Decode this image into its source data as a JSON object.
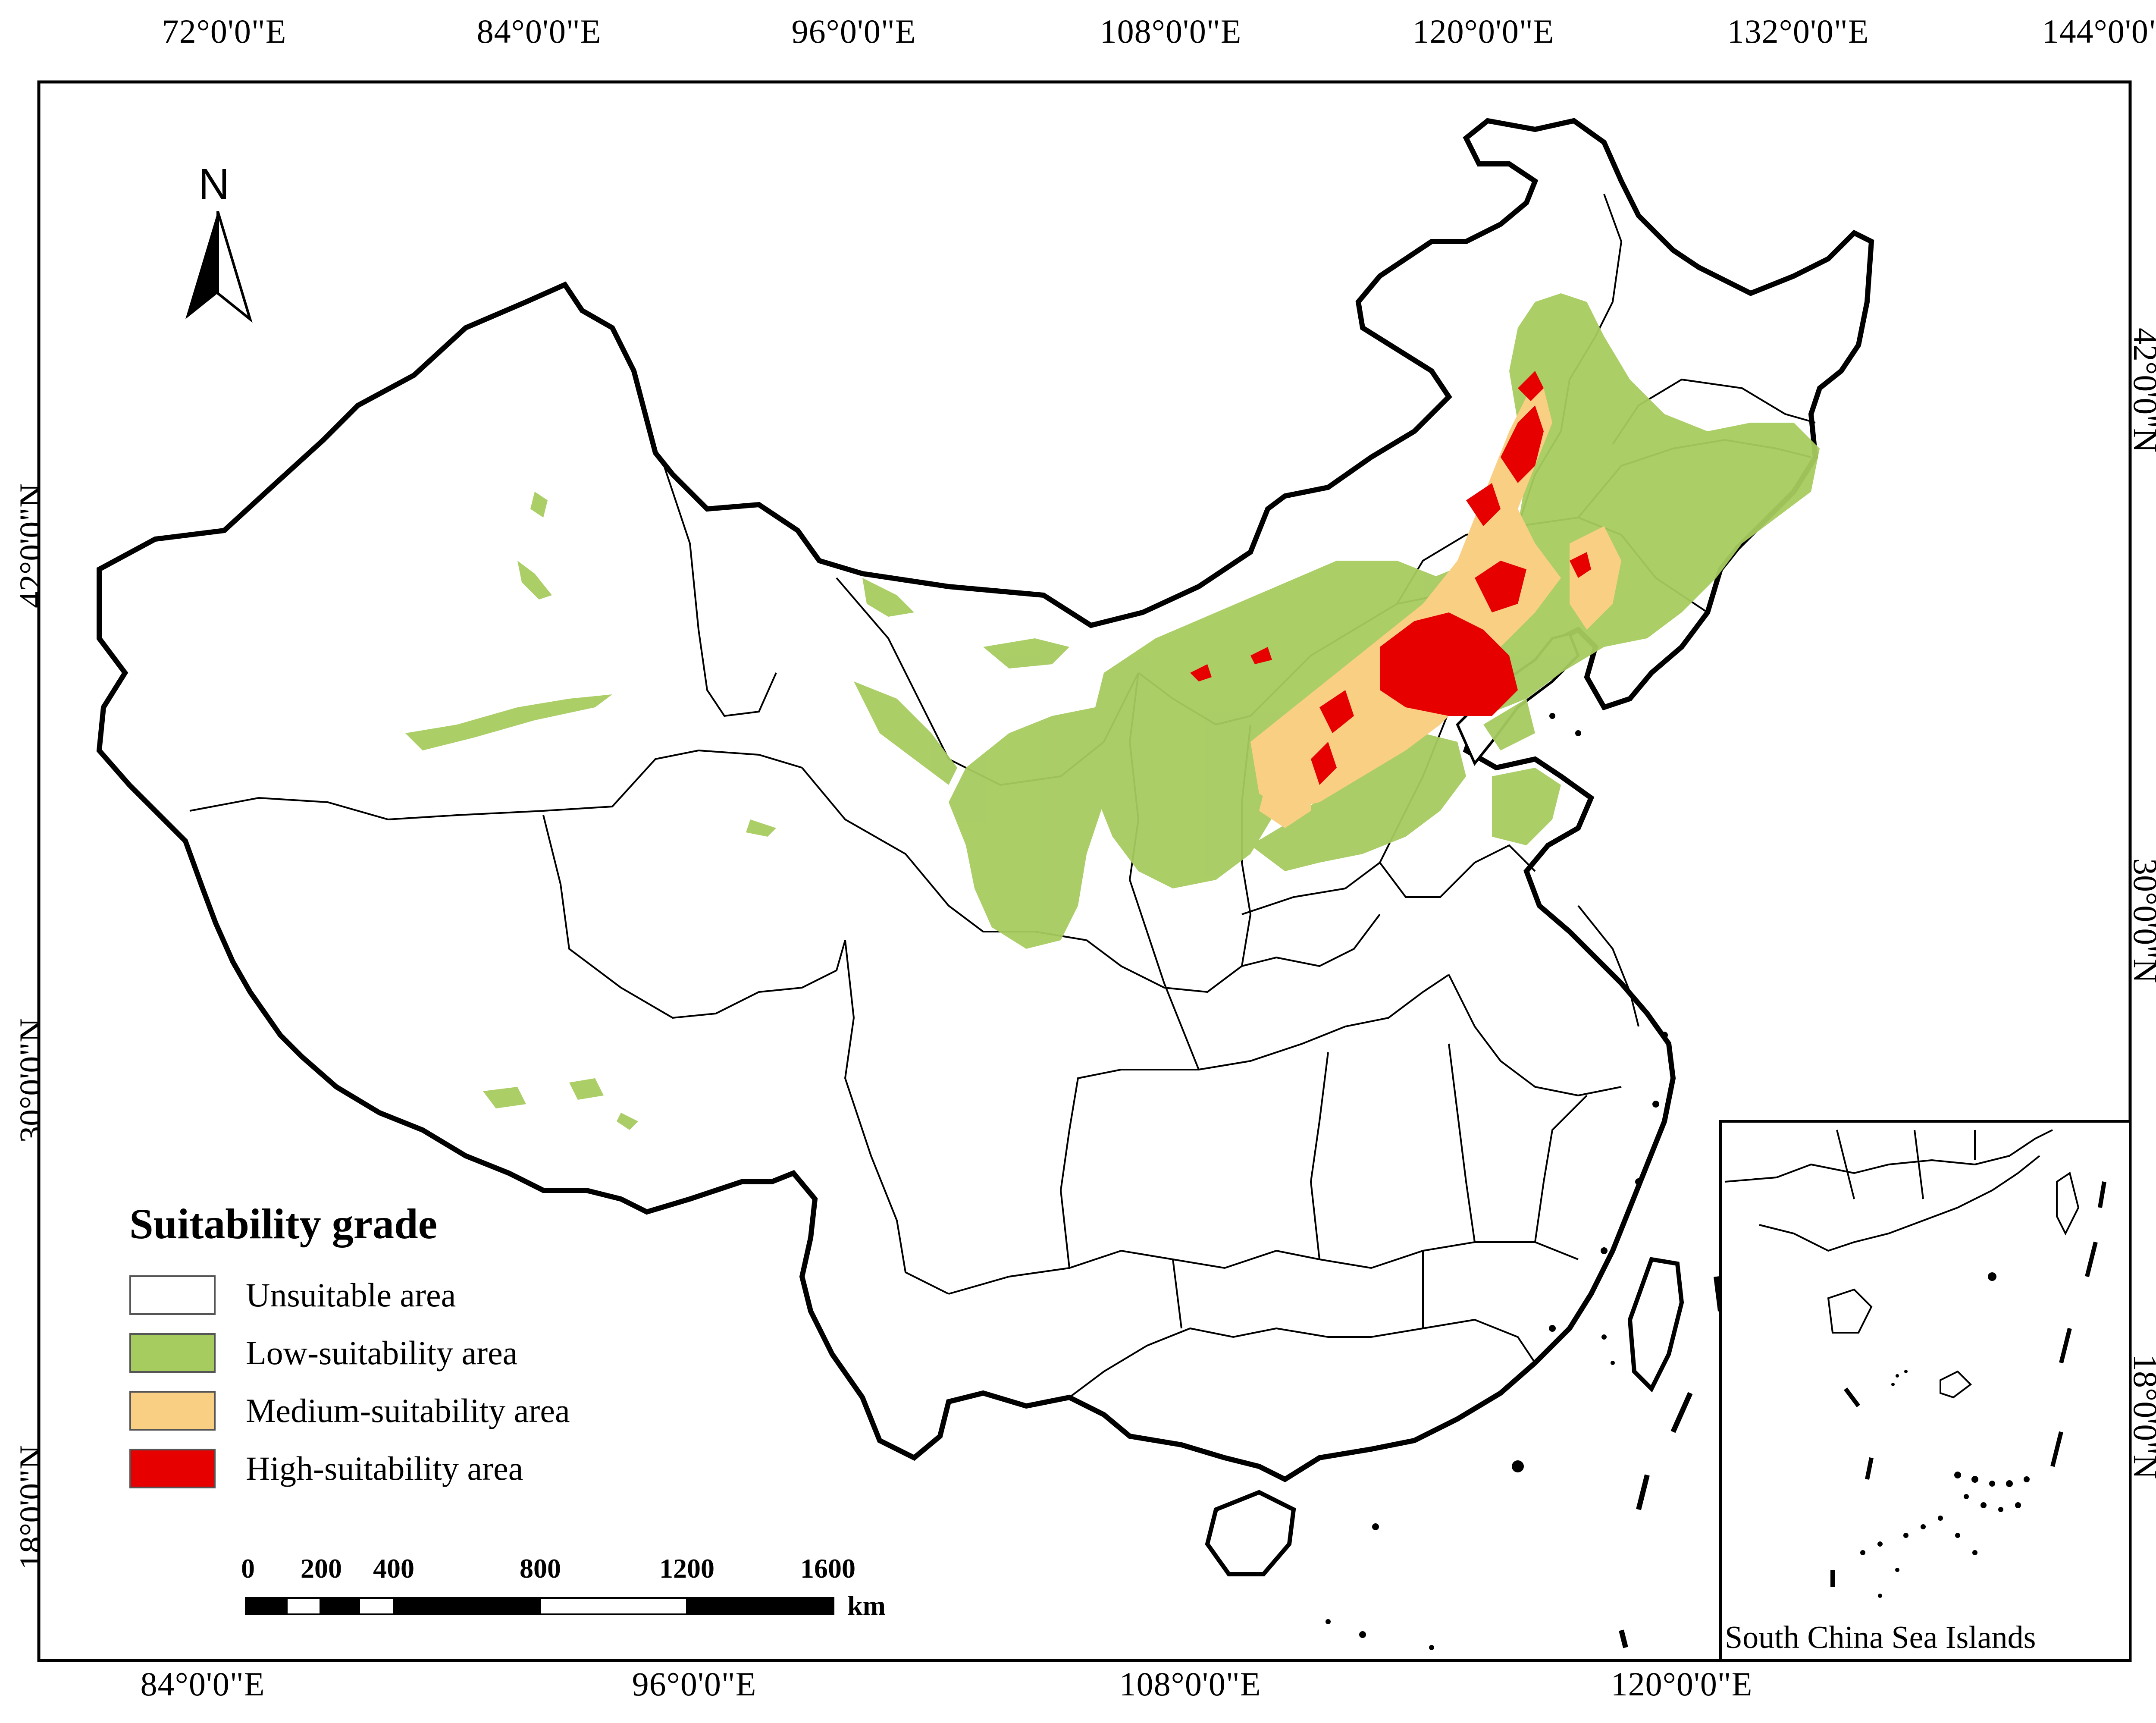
{
  "map": {
    "top_ticks": [
      "72°0'0\"E",
      "84°0'0\"E",
      "96°0'0\"E",
      "108°0'0\"E",
      "120°0'0\"E",
      "132°0'0\"E",
      "144°0'0\"E"
    ],
    "bottom_ticks": [
      "84°0'0\"E",
      "96°0'0\"E",
      "108°0'0\"E",
      "120°0'0\"E"
    ],
    "left_ticks": [
      "42°0'0\"N",
      "30°0'0\"N",
      "18°0'0\"N"
    ],
    "right_ticks": [
      "42°0'0\"N",
      "30°0'0\"N",
      "18°0'0\"N"
    ],
    "north_arrow": {
      "label": "N",
      "icon": "north-arrow-icon"
    }
  },
  "legend": {
    "title": "Suitability grade",
    "items": [
      {
        "label": "Unsuitable area",
        "color": "#ffffff"
      },
      {
        "label": "Low-suitability area",
        "color": "#a6cb5f"
      },
      {
        "label": "Medium-suitability area",
        "color": "#f9cf84"
      },
      {
        "label": "High-suitability area",
        "color": "#e60000"
      }
    ]
  },
  "scale_bar": {
    "labels": [
      "0",
      "200",
      "400",
      "800",
      "1200",
      "1600"
    ],
    "unit": "km"
  },
  "inset": {
    "caption": "South China Sea Islands"
  }
}
